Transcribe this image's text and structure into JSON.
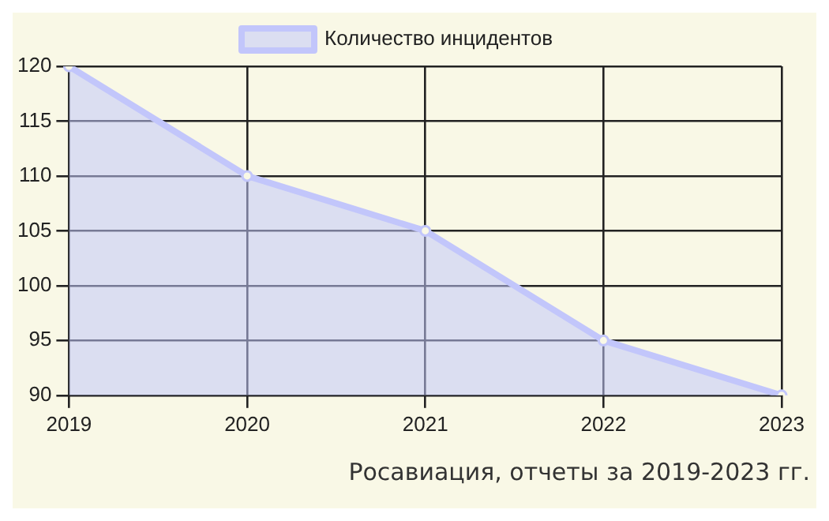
{
  "chart_data": {
    "type": "area",
    "categories": [
      "2019",
      "2020",
      "2021",
      "2022",
      "2023"
    ],
    "series": [
      {
        "name": "Количество инцидентов",
        "color": "#c2c6fb",
        "values": [
          120,
          110,
          105,
          95,
          90
        ]
      }
    ],
    "ylim": [
      90,
      120
    ],
    "yticks": [
      90,
      95,
      100,
      105,
      110,
      115,
      120
    ],
    "grid": true,
    "legend": "top",
    "marker": "circle",
    "annotations": [
      "Росавиация, отчеты за 2019-2023 гг."
    ]
  }
}
